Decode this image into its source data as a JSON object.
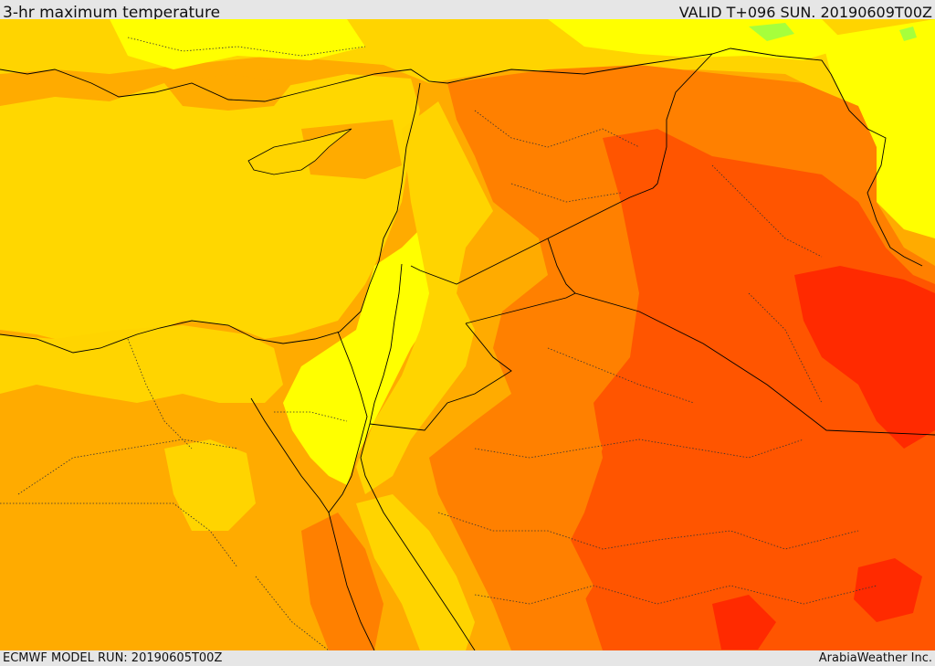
{
  "header": {
    "title": "3-hr maximum temperature",
    "valid": "VALID T+096 SUN. 20190609T00Z"
  },
  "footer": {
    "model_run": "ECMWF MODEL RUN: 20190605T00Z",
    "credit": "ArabiaWeather Inc."
  },
  "map": {
    "colors": {
      "sea": "#ffd700",
      "band_light_yellow": "#ffff00",
      "band_yellow": "#ffd400",
      "band_orange_light": "#ffab00",
      "band_orange": "#ff8000",
      "band_red_orange": "#ff5500",
      "band_red": "#ff2a00",
      "band_green": "#a6ff3c",
      "border": "#000000"
    }
  }
}
